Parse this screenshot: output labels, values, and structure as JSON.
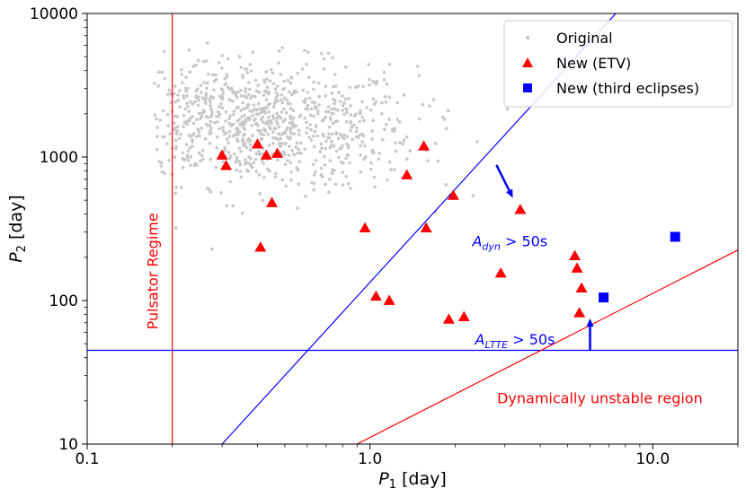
{
  "chart_data": {
    "type": "scatter",
    "x_scale": "log",
    "y_scale": "log",
    "xlim": [
      0.1,
      20
    ],
    "ylim": [
      10,
      10000
    ],
    "xlabel": {
      "main": "P",
      "sub": "1",
      "rest": " [day]"
    },
    "ylabel": {
      "main": "P",
      "sub": "2",
      "rest": " [day]"
    },
    "xticks": [
      {
        "value": 0.1,
        "label": "0.1"
      },
      {
        "value": 1,
        "label": "1.0"
      },
      {
        "value": 10,
        "label": "10.0"
      }
    ],
    "yticks": [
      {
        "value": 10,
        "label": "10"
      },
      {
        "value": 100,
        "label": "100"
      },
      {
        "value": 1000,
        "label": "1000"
      },
      {
        "value": 10000,
        "label": "10000"
      }
    ],
    "grid": false,
    "legend_position": "top-right",
    "colors": {
      "original": "#c8c8c8",
      "etv": "#ff0000",
      "third": "#0000ff",
      "dyn_line": "#0000ff",
      "ltte_line": "#0000ff",
      "pulsator_line": "#ff0000",
      "unstable_line": "#ff0000"
    },
    "series": [
      {
        "name": "Original",
        "marker": "dot",
        "color": "#c8c8c8",
        "cloud": {
          "x_center": 0.4,
          "x_spread": 0.28,
          "y_center": 1700,
          "y_spread": 0.22,
          "count": 950,
          "x_range": [
            0.17,
            3.5
          ],
          "y_range": [
            120,
            8000
          ]
        }
      },
      {
        "name": "New (ETV)",
        "marker": "triangle",
        "color": "#ff0000",
        "points": [
          [
            0.3,
            1030
          ],
          [
            0.31,
            870
          ],
          [
            0.4,
            1230
          ],
          [
            0.43,
            1030
          ],
          [
            0.47,
            1060
          ],
          [
            0.45,
            480
          ],
          [
            0.41,
            235
          ],
          [
            0.96,
            320
          ],
          [
            1.05,
            107
          ],
          [
            1.17,
            100
          ],
          [
            1.35,
            750
          ],
          [
            1.55,
            1190
          ],
          [
            1.58,
            320
          ],
          [
            1.9,
            74
          ],
          [
            1.97,
            540
          ],
          [
            2.15,
            77
          ],
          [
            2.9,
            155
          ],
          [
            3.4,
            430
          ],
          [
            5.3,
            205
          ],
          [
            5.4,
            168
          ],
          [
            5.6,
            122
          ],
          [
            5.5,
            82
          ]
        ]
      },
      {
        "name": "New (third eclipses)",
        "marker": "square",
        "color": "#0000ff",
        "points": [
          [
            6.7,
            105
          ],
          [
            12.0,
            278
          ]
        ]
      }
    ],
    "reference_lines": [
      {
        "name": "pulsator-line",
        "color": "#ff0000",
        "kind": "vertical",
        "x": 0.2
      },
      {
        "name": "ltte-line",
        "color": "#0000ff",
        "kind": "horizontal",
        "y": 45
      },
      {
        "name": "dynamical-line",
        "color": "#0000ff",
        "kind": "segment",
        "from": [
          0.3,
          10
        ],
        "to": [
          7.4,
          10000
        ]
      },
      {
        "name": "unstable-line",
        "color": "#ff0000",
        "kind": "segment",
        "from": [
          0.9,
          10
        ],
        "to": [
          20,
          225
        ]
      }
    ],
    "arrows": [
      {
        "name": "dyn-arrow",
        "color": "#0000ff",
        "from": [
          2.8,
          880
        ],
        "to": [
          3.2,
          520
        ]
      },
      {
        "name": "ltte-arrow",
        "color": "#0000ff",
        "from": [
          6.0,
          45
        ],
        "to": [
          6.0,
          75
        ]
      }
    ],
    "annotations": {
      "pulsator": {
        "text": "Pulsator Regime",
        "color": "#ff0000",
        "x": 0.17,
        "y": 160
      },
      "dyn": {
        "main": "A",
        "sub": "dyn",
        "rest": " > 50s",
        "color": "#0000ff",
        "x": 2.3,
        "y": 260
      },
      "ltte": {
        "main": "A",
        "sub": "LTTE",
        "rest": " > 50s",
        "color": "#0000ff",
        "x": 2.35,
        "y": 54
      },
      "unstable": {
        "text": "Dynamically unstable region",
        "color": "#ff0000",
        "x": 6.5,
        "y": 21
      }
    }
  }
}
